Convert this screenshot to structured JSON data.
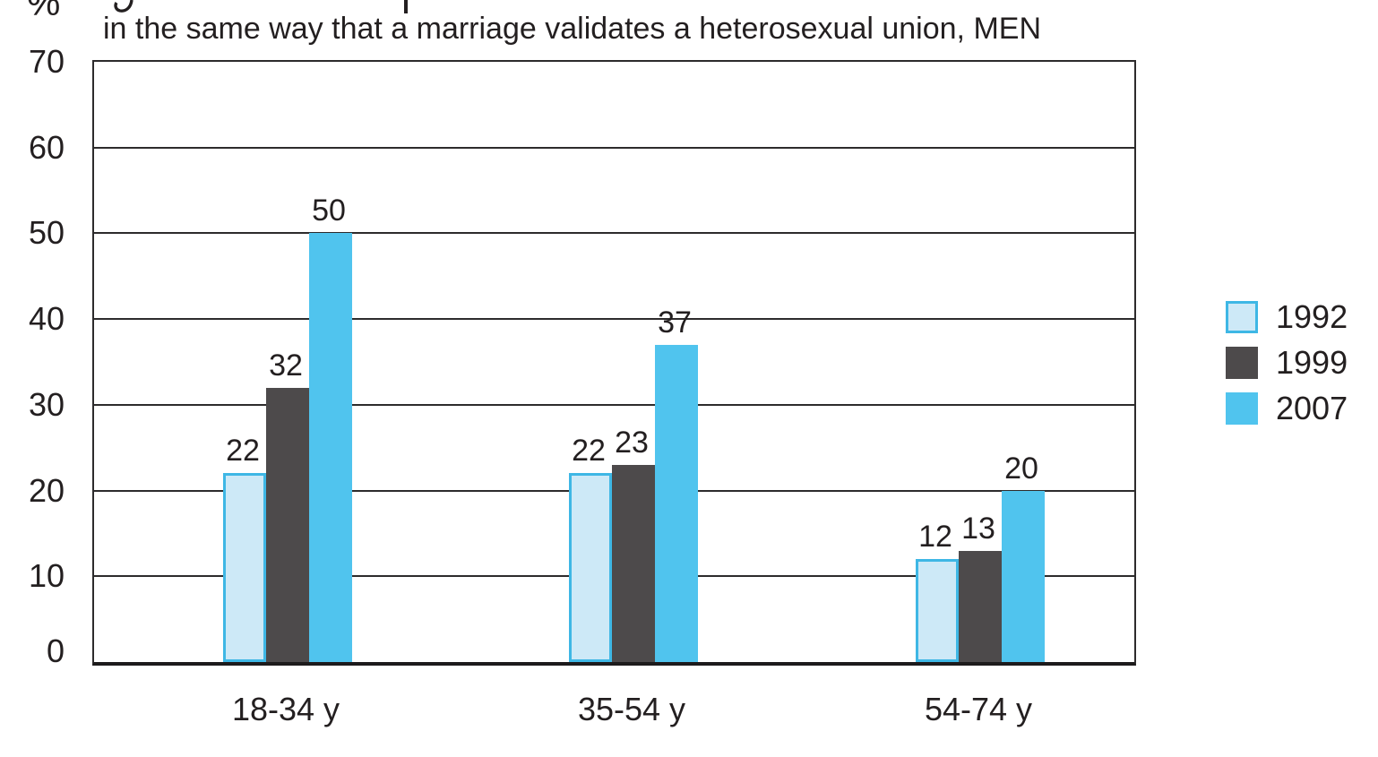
{
  "title": {
    "line2": "in the same way that a marriage validates a heterosexual union, MEN"
  },
  "chart_data": {
    "type": "bar",
    "title": "in the same way that a marriage validates a heterosexual union, MEN",
    "categories": [
      "18-34 y",
      "35-54 y",
      "54-74 y"
    ],
    "series": [
      {
        "name": "1992",
        "values": [
          22,
          22,
          12
        ],
        "fill": "#cde9f7",
        "border": "#3eb7e5"
      },
      {
        "name": "1999",
        "values": [
          32,
          23,
          13
        ],
        "fill": "#4d4a4b",
        "border": "#4d4a4b"
      },
      {
        "name": "2007",
        "values": [
          50,
          37,
          20
        ],
        "fill": "#50c4ee",
        "border": "#50c4ee"
      }
    ],
    "ylabel": "%",
    "xlabel": "",
    "ylim": [
      0,
      70
    ],
    "yticks": [
      0,
      10,
      20,
      30,
      40,
      50,
      60,
      70
    ],
    "grid": true,
    "bar_value_labels": true,
    "legend_position": "right",
    "legend_entries": [
      "1992",
      "1999",
      "2007"
    ]
  },
  "colors": {
    "ink": "#231f20",
    "gridline": "#2d2b2c",
    "axis": "#1d1b1c",
    "background": "#ffffff"
  }
}
